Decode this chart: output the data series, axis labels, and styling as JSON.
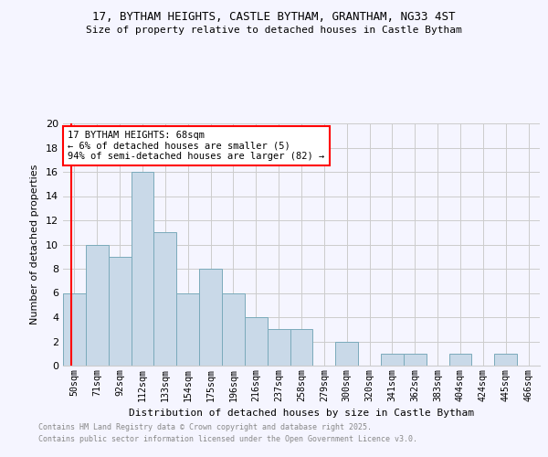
{
  "title1": "17, BYTHAM HEIGHTS, CASTLE BYTHAM, GRANTHAM, NG33 4ST",
  "title2": "Size of property relative to detached houses in Castle Bytham",
  "xlabel": "Distribution of detached houses by size in Castle Bytham",
  "ylabel": "Number of detached properties",
  "bin_labels": [
    "50sqm",
    "71sqm",
    "92sqm",
    "112sqm",
    "133sqm",
    "154sqm",
    "175sqm",
    "196sqm",
    "216sqm",
    "237sqm",
    "258sqm",
    "279sqm",
    "300sqm",
    "320sqm",
    "341sqm",
    "362sqm",
    "383sqm",
    "404sqm",
    "424sqm",
    "445sqm",
    "466sqm"
  ],
  "counts": [
    6,
    10,
    9,
    16,
    11,
    6,
    8,
    6,
    4,
    3,
    3,
    0,
    2,
    0,
    1,
    1,
    0,
    1,
    0,
    1,
    0
  ],
  "bar_color": "#c9d9e8",
  "bar_edge_color": "#7aaabb",
  "grid_color": "#cccccc",
  "vline_color": "red",
  "vline_x": -0.15,
  "annotation_text": "17 BYTHAM HEIGHTS: 68sqm\n← 6% of detached houses are smaller (5)\n94% of semi-detached houses are larger (82) →",
  "annotation_box_color": "white",
  "annotation_box_edge": "red",
  "footnote1": "Contains HM Land Registry data © Crown copyright and database right 2025.",
  "footnote2": "Contains public sector information licensed under the Open Government Licence v3.0.",
  "ylim": [
    0,
    20
  ],
  "yticks": [
    0,
    2,
    4,
    6,
    8,
    10,
    12,
    14,
    16,
    18,
    20
  ],
  "bg_color": "#f5f5ff"
}
